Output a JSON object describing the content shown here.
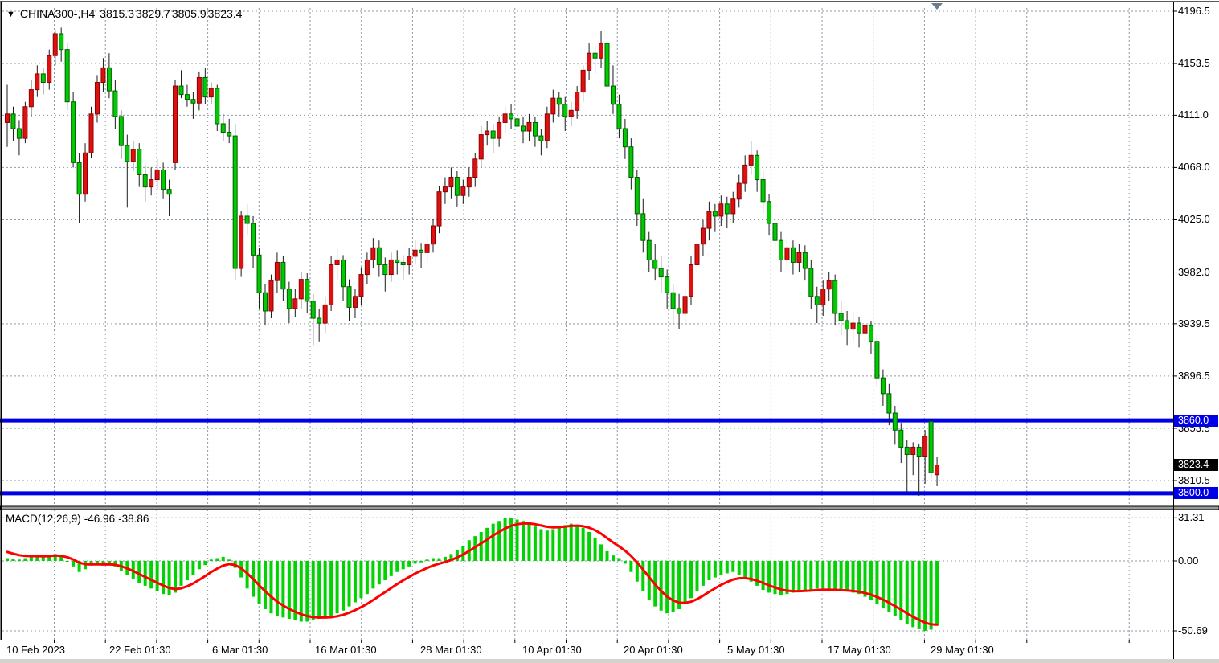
{
  "header": {
    "symbol_period": "CHINA300-,H4",
    "open": "3815.3",
    "high": "3829.7",
    "low": "3805.9",
    "close": "3823.4"
  },
  "indicator": {
    "name": "MACD(12,26,9)",
    "macd_value": "-46.96",
    "signal_value": "-38.86"
  },
  "colors": {
    "bull_body": "#e01010",
    "bull_border": "#8d0000",
    "bear_body": "#00cb00",
    "bear_border": "#005e00",
    "wick": "#1a1a1a",
    "grid": "#8d9aa8",
    "level_line": "#0000e8",
    "current_price_line": "#8c8c8c",
    "macd_bar": "#00d400",
    "signal_line": "#ff0000",
    "badge_blue_bg": "#0000e8",
    "badge_black_bg": "#000000"
  },
  "chart_data": {
    "type": "candlestick+macd",
    "title": "CHINA300-,H4  3815.3 3829.7 3805.9 3823.4",
    "legend_position": "none",
    "grid": "dashed",
    "price_axis": {
      "ylim": [
        3790,
        4200
      ],
      "ticks": [
        {
          "label": "4196.5",
          "value": 4196.5
        },
        {
          "label": "4153.5",
          "value": 4153.5
        },
        {
          "label": "4111.0",
          "value": 4111.0
        },
        {
          "label": "4068.0",
          "value": 4068.0
        },
        {
          "label": "4025.0",
          "value": 4025.0
        },
        {
          "label": "3982.0",
          "value": 3982.0
        },
        {
          "label": "3939.5",
          "value": 3939.5
        },
        {
          "label": "3896.5",
          "value": 3896.5
        },
        {
          "label": "3853.5",
          "value": 3853.5
        },
        {
          "label": "3810.5",
          "value": 3810.5
        }
      ]
    },
    "macd_axis": {
      "ylim": [
        -50.69,
        31.31
      ],
      "ticks": [
        {
          "label": "31.31",
          "value": 31.31
        },
        {
          "label": "0.00",
          "value": 0.0
        },
        {
          "label": "-50.69",
          "value": -50.69
        }
      ]
    },
    "time_axis": {
      "labels": [
        "10 Feb 2023",
        "22 Feb 01:30",
        "6 Mar 01:30",
        "16 Mar 01:30",
        "28 Mar 01:30",
        "10 Apr 01:30",
        "20 Apr 01:30",
        "5 May 01:30",
        "17 May 01:30",
        "29 May 01:30"
      ]
    },
    "levels": [
      {
        "label": "3860.0",
        "value": 3860.0
      },
      {
        "label": "3800.0",
        "value": 3800.0
      }
    ],
    "current_price": {
      "label": "3823.4",
      "value": 3823.4
    },
    "candles_ohlc": [
      [
        4105,
        4136,
        4085,
        4112
      ],
      [
        4112,
        4118,
        4090,
        4100
      ],
      [
        4100,
        4107,
        4078,
        4092
      ],
      [
        4092,
        4122,
        4088,
        4118
      ],
      [
        4118,
        4140,
        4110,
        4132
      ],
      [
        4132,
        4152,
        4126,
        4145
      ],
      [
        4145,
        4150,
        4128,
        4138
      ],
      [
        4138,
        4165,
        4132,
        4160
      ],
      [
        4160,
        4181,
        4152,
        4178
      ],
      [
        4178,
        4183,
        4155,
        4165
      ],
      [
        4165,
        4170,
        4115,
        4122
      ],
      [
        4122,
        4130,
        4068,
        4072
      ],
      [
        4072,
        4080,
        4022,
        4046
      ],
      [
        4046,
        4088,
        4040,
        4080
      ],
      [
        4080,
        4118,
        4076,
        4112
      ],
      [
        4112,
        4144,
        4105,
        4138
      ],
      [
        4138,
        4158,
        4130,
        4150
      ],
      [
        4150,
        4162,
        4125,
        4131
      ],
      [
        4131,
        4140,
        4100,
        4110
      ],
      [
        4110,
        4115,
        4075,
        4086
      ],
      [
        4086,
        4095,
        4035,
        4073
      ],
      [
        4073,
        4090,
        4065,
        4083
      ],
      [
        4083,
        4088,
        4052,
        4062
      ],
      [
        4062,
        4070,
        4040,
        4052
      ],
      [
        4052,
        4068,
        4045,
        4058
      ],
      [
        4058,
        4075,
        4050,
        4066
      ],
      [
        4066,
        4072,
        4042,
        4050
      ],
      [
        4050,
        4058,
        4028,
        4046
      ],
      [
        4072,
        4140,
        4066,
        4135
      ],
      [
        4135,
        4148,
        4125,
        4128
      ],
      [
        4128,
        4136,
        4118,
        4124
      ],
      [
        4124,
        4130,
        4108,
        4121
      ],
      [
        4121,
        4147,
        4115,
        4142
      ],
      [
        4142,
        4150,
        4120,
        4126
      ],
      [
        4126,
        4138,
        4120,
        4133
      ],
      [
        4133,
        4136,
        4098,
        4104
      ],
      [
        4104,
        4112,
        4090,
        4097
      ],
      [
        4097,
        4108,
        4088,
        4094
      ],
      [
        4094,
        4104,
        3975,
        3985
      ],
      [
        3985,
        4032,
        3978,
        4028
      ],
      [
        4028,
        4038,
        4012,
        4022
      ],
      [
        4022,
        4028,
        3985,
        3996
      ],
      [
        3996,
        4002,
        3952,
        3965
      ],
      [
        3965,
        3972,
        3938,
        3950
      ],
      [
        3950,
        3980,
        3944,
        3975
      ],
      [
        3975,
        3998,
        3965,
        3990
      ],
      [
        3990,
        3995,
        3958,
        3968
      ],
      [
        3968,
        3974,
        3940,
        3952
      ],
      [
        3952,
        3968,
        3945,
        3960
      ],
      [
        3960,
        3982,
        3952,
        3976
      ],
      [
        3976,
        3981,
        3948,
        3958
      ],
      [
        3958,
        3964,
        3922,
        3944
      ],
      [
        3944,
        3952,
        3925,
        3940
      ],
      [
        3940,
        3962,
        3932,
        3955
      ],
      [
        3955,
        3995,
        3950,
        3988
      ],
      [
        3988,
        4002,
        3975,
        3992
      ],
      [
        3992,
        3996,
        3958,
        3970
      ],
      [
        3970,
        3976,
        3942,
        3953
      ],
      [
        3953,
        3968,
        3944,
        3962
      ],
      [
        3962,
        3986,
        3955,
        3980
      ],
      [
        3980,
        3998,
        3972,
        3992
      ],
      [
        3992,
        4010,
        3985,
        4002
      ],
      [
        4002,
        4008,
        3978,
        3988
      ],
      [
        3988,
        3994,
        3966,
        3980
      ],
      [
        3980,
        3998,
        3974,
        3992
      ],
      [
        3992,
        4000,
        3980,
        3990
      ],
      [
        3990,
        3996,
        3976,
        3988
      ],
      [
        3988,
        4002,
        3980,
        3995
      ],
      [
        3995,
        4008,
        3988,
        4000
      ],
      [
        4000,
        4006,
        3985,
        3998
      ],
      [
        3998,
        4012,
        3990,
        4005
      ],
      [
        4005,
        4026,
        3998,
        4020
      ],
      [
        4020,
        4053,
        4014,
        4048
      ],
      [
        4048,
        4060,
        4038,
        4052
      ],
      [
        4052,
        4068,
        4042,
        4060
      ],
      [
        4060,
        4065,
        4036,
        4045
      ],
      [
        4045,
        4058,
        4038,
        4052
      ],
      [
        4052,
        4068,
        4044,
        4060
      ],
      [
        4060,
        4080,
        4052,
        4075
      ],
      [
        4075,
        4102,
        4068,
        4095
      ],
      [
        4095,
        4106,
        4086,
        4098
      ],
      [
        4098,
        4104,
        4080,
        4092
      ],
      [
        4092,
        4110,
        4085,
        4105
      ],
      [
        4105,
        4118,
        4096,
        4112
      ],
      [
        4112,
        4120,
        4100,
        4108
      ],
      [
        4108,
        4115,
        4092,
        4102
      ],
      [
        4102,
        4110,
        4088,
        4098
      ],
      [
        4098,
        4112,
        4090,
        4105
      ],
      [
        4105,
        4110,
        4085,
        4094
      ],
      [
        4094,
        4100,
        4078,
        4090
      ],
      [
        4090,
        4118,
        4084,
        4112
      ],
      [
        4112,
        4132,
        4105,
        4125
      ],
      [
        4125,
        4130,
        4110,
        4120
      ],
      [
        4120,
        4126,
        4098,
        4110
      ],
      [
        4110,
        4122,
        4102,
        4115
      ],
      [
        4115,
        4135,
        4108,
        4130
      ],
      [
        4130,
        4152,
        4122,
        4148
      ],
      [
        4148,
        4170,
        4140,
        4162
      ],
      [
        4162,
        4168,
        4145,
        4158
      ],
      [
        4158,
        4180,
        4150,
        4170
      ],
      [
        4170,
        4175,
        4128,
        4135
      ],
      [
        4135,
        4152,
        4112,
        4120
      ],
      [
        4120,
        4128,
        4092,
        4100
      ],
      [
        4100,
        4108,
        4075,
        4085
      ],
      [
        4085,
        4092,
        4050,
        4060
      ],
      [
        4060,
        4066,
        4020,
        4030
      ],
      [
        4030,
        4042,
        3998,
        4008
      ],
      [
        4008,
        4015,
        3982,
        3992
      ],
      [
        3992,
        4005,
        3975,
        3985
      ],
      [
        3985,
        3995,
        3965,
        3978
      ],
      [
        3978,
        3984,
        3952,
        3965
      ],
      [
        3965,
        3972,
        3938,
        3952
      ],
      [
        3952,
        3964,
        3935,
        3948
      ],
      [
        3948,
        3970,
        3940,
        3962
      ],
      [
        3962,
        3995,
        3955,
        3988
      ],
      [
        3988,
        4012,
        3980,
        4005
      ],
      [
        4005,
        4025,
        3995,
        4018
      ],
      [
        4018,
        4040,
        4008,
        4032
      ],
      [
        4032,
        4038,
        4015,
        4028
      ],
      [
        4028,
        4045,
        4020,
        4038
      ],
      [
        4038,
        4044,
        4018,
        4030
      ],
      [
        4030,
        4048,
        4022,
        4042
      ],
      [
        4042,
        4062,
        4035,
        4055
      ],
      [
        4055,
        4078,
        4048,
        4070
      ],
      [
        4070,
        4090,
        4062,
        4078
      ],
      [
        4078,
        4082,
        4048,
        4058
      ],
      [
        4058,
        4065,
        4030,
        4040
      ],
      [
        4040,
        4046,
        4012,
        4022
      ],
      [
        4022,
        4030,
        3998,
        4008
      ],
      [
        4008,
        4015,
        3982,
        3992
      ],
      [
        3992,
        4010,
        3985,
        4002
      ],
      [
        4002,
        4008,
        3980,
        3990
      ],
      [
        3990,
        4005,
        3982,
        3998
      ],
      [
        3998,
        4004,
        3975,
        3985
      ],
      [
        3985,
        3992,
        3952,
        3962
      ],
      [
        3962,
        3970,
        3940,
        3955
      ],
      [
        3955,
        3975,
        3946,
        3968
      ],
      [
        3968,
        3982,
        3958,
        3975
      ],
      [
        3975,
        3980,
        3938,
        3948
      ],
      [
        3948,
        3958,
        3930,
        3942
      ],
      [
        3942,
        3950,
        3922,
        3935
      ],
      [
        3935,
        3948,
        3925,
        3940
      ],
      [
        3940,
        3945,
        3920,
        3932
      ],
      [
        3932,
        3944,
        3922,
        3938
      ],
      [
        3938,
        3942,
        3915,
        3925
      ],
      [
        3925,
        3930,
        3888,
        3895
      ],
      [
        3895,
        3902,
        3872,
        3882
      ],
      [
        3882,
        3890,
        3856,
        3866
      ],
      [
        3866,
        3872,
        3840,
        3852
      ],
      [
        3852,
        3858,
        3825,
        3838
      ],
      [
        3838,
        3844,
        3800,
        3832
      ],
      [
        3832,
        3842,
        3815,
        3838
      ],
      [
        3838,
        3841,
        3798,
        3830
      ],
      [
        3830,
        3852,
        3808,
        3847
      ],
      [
        3859,
        3862,
        3812,
        3817
      ],
      [
        3815.3,
        3829.7,
        3805.9,
        3823.4
      ]
    ],
    "macd_histogram": [
      2,
      1.5,
      1,
      2,
      3,
      3.5,
      3,
      4,
      5,
      3,
      0,
      -4,
      -8,
      -6,
      -3,
      -2,
      -3,
      -2,
      -4,
      -7,
      -10,
      -13,
      -16,
      -18,
      -20,
      -22,
      -24,
      -25,
      -23,
      -18,
      -14,
      -10,
      -6,
      -3,
      1,
      2,
      3,
      1,
      -5,
      -12,
      -20,
      -26,
      -31,
      -35,
      -38,
      -40,
      -41,
      -42,
      -43,
      -44,
      -44,
      -43,
      -42,
      -41,
      -40,
      -38,
      -36,
      -33,
      -30,
      -27,
      -24,
      -20,
      -17,
      -14,
      -11,
      -8,
      -6,
      -4,
      -2,
      -1,
      1,
      2,
      2,
      3,
      5,
      8,
      11,
      15,
      18,
      21,
      24,
      27,
      29,
      31,
      31.3,
      30,
      29,
      27,
      25,
      23,
      22,
      23,
      25,
      26,
      27,
      26,
      24,
      21,
      17,
      12,
      7,
      4,
      2,
      -2,
      -8,
      -15,
      -22,
      -28,
      -33,
      -36,
      -38,
      -37,
      -35,
      -31,
      -27,
      -22,
      -18,
      -14,
      -12,
      -10,
      -9,
      -8,
      -10,
      -12,
      -15,
      -18,
      -21,
      -23,
      -24,
      -25,
      -24,
      -23,
      -22,
      -21,
      -21,
      -20,
      -20,
      -21,
      -21,
      -22,
      -22,
      -23,
      -24,
      -26,
      -28,
      -31,
      -34,
      -37,
      -40,
      -43,
      -46,
      -48,
      -49.5,
      -50.69,
      -49.8,
      -46.96
    ]
  }
}
